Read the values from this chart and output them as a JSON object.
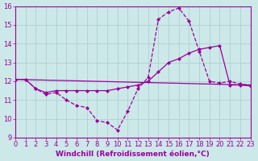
{
  "title": "",
  "xlabel": "Windchill (Refroidissement éolien,°C)",
  "ylabel": "",
  "xlim": [
    0,
    23
  ],
  "ylim": [
    9,
    16
  ],
  "yticks": [
    9,
    10,
    11,
    12,
    13,
    14,
    15,
    16
  ],
  "xticks": [
    0,
    1,
    2,
    3,
    4,
    5,
    6,
    7,
    8,
    9,
    10,
    11,
    12,
    13,
    14,
    15,
    16,
    17,
    18,
    19,
    20,
    21,
    22,
    23
  ],
  "bg_color": "#cce8e8",
  "line_color": "#9b009b",
  "grid_color": "#aacccc",
  "line1_x": [
    0,
    1,
    2,
    3,
    4,
    5,
    6,
    7,
    8,
    9,
    10,
    11,
    12,
    13,
    14,
    15,
    16,
    17,
    18,
    19,
    20,
    21,
    22,
    23
  ],
  "line1_y": [
    12.1,
    12.1,
    11.6,
    11.3,
    11.4,
    11.0,
    10.7,
    10.6,
    9.9,
    9.8,
    9.4,
    10.4,
    11.6,
    12.2,
    15.3,
    15.7,
    15.9,
    15.2,
    13.6,
    12.0,
    11.9,
    12.0,
    11.85,
    11.8
  ],
  "line2_x": [
    0,
    1,
    2,
    3,
    4,
    5,
    6,
    7,
    8,
    9,
    10,
    11,
    12,
    13,
    14,
    15,
    16,
    17,
    18,
    19,
    20,
    21,
    22,
    23
  ],
  "line2_y": [
    12.1,
    12.1,
    11.6,
    11.4,
    11.5,
    11.5,
    11.5,
    11.5,
    11.5,
    11.5,
    11.6,
    11.7,
    11.8,
    12.0,
    12.5,
    13.0,
    13.2,
    13.5,
    13.7,
    13.8,
    13.9,
    11.8,
    11.8,
    11.75
  ],
  "line3_x": [
    0,
    23
  ],
  "line3_y": [
    12.1,
    11.8
  ]
}
